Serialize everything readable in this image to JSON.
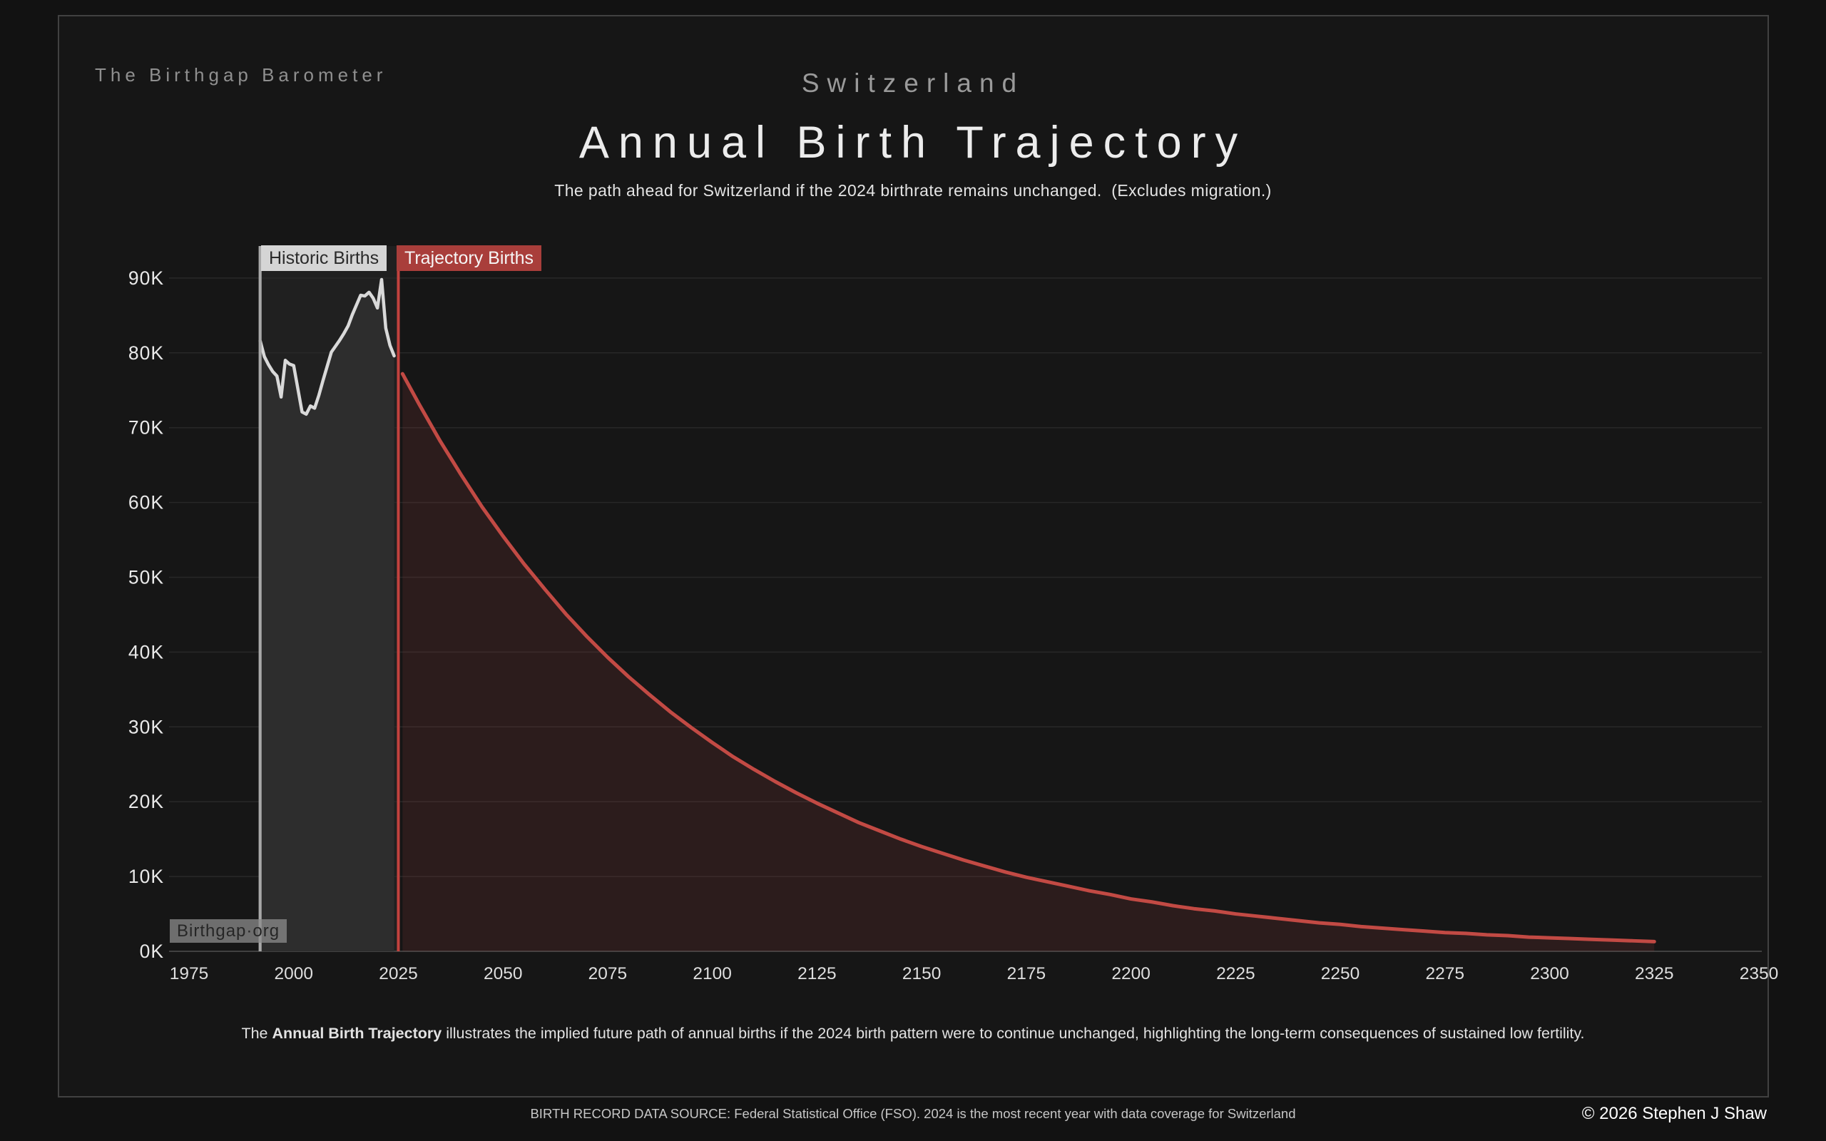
{
  "brand": "The Birthgap Barometer",
  "header": {
    "country": "Switzerland",
    "title": "Annual Birth Trajectory",
    "subtitle": "The path ahead for Switzerland if the 2024 birthrate remains unchanged.  (Excludes migration.)"
  },
  "legend": {
    "historic_label": "Historic Births",
    "trajectory_label": "Trajectory Births"
  },
  "watermark": "Birthgap·org",
  "footnote": {
    "lead": "The ",
    "bold": "Annual Birth Trajectory",
    "rest": " illustrates the implied future path of annual births if the 2024 birth pattern were to continue unchanged, highlighting the long-term consequences of sustained low fertility."
  },
  "footer": {
    "source": "BIRTH RECORD DATA SOURCE: Federal Statistical Office (FSO). 2024 is the most recent year with data coverage for Switzerland",
    "copyright": "© 2026 Stephen J Shaw"
  },
  "chart_data": {
    "type": "area",
    "title": "Annual Birth Trajectory",
    "xlabel": "",
    "ylabel": "",
    "x_axis": {
      "range": [
        1975,
        2350
      ],
      "ticks": [
        1975,
        2000,
        2025,
        2050,
        2075,
        2100,
        2125,
        2150,
        2175,
        2200,
        2225,
        2250,
        2275,
        2300,
        2325,
        2350
      ]
    },
    "y_axis": {
      "range_thousands": [
        0,
        94
      ],
      "tick_values_thousands": [
        0,
        10,
        20,
        30,
        40,
        50,
        60,
        70,
        80,
        90
      ],
      "tick_labels": [
        "0K",
        "10K",
        "20K",
        "30K",
        "40K",
        "50K",
        "60K",
        "70K",
        "80K",
        "90K"
      ]
    },
    "grid": "horizontal-only",
    "legend_position": "top-left-of-plot",
    "historic_start_year": 1992,
    "trajectory_boundary_year": 2025,
    "series": [
      {
        "name": "Historic Births",
        "unit": "thousand births per year",
        "years": [
          1992,
          1993,
          1994,
          1995,
          1996,
          1997,
          1998,
          1999,
          2000,
          2001,
          2002,
          2003,
          2004,
          2005,
          2006,
          2007,
          2008,
          2009,
          2010,
          2011,
          2012,
          2013,
          2014,
          2015,
          2016,
          2017,
          2018,
          2019,
          2020,
          2021,
          2022,
          2023,
          2024
        ],
        "values_thousands": [
          81.6,
          79.5,
          78.4,
          77.5,
          76.9,
          74.1,
          79.0,
          78.5,
          78.3,
          75.2,
          72.1,
          71.8,
          72.9,
          72.6,
          74.3,
          76.3,
          78.2,
          80.1,
          80.9,
          81.7,
          82.6,
          83.6,
          85.1,
          86.4,
          87.7,
          87.6,
          88.1,
          87.3,
          86.0,
          89.8,
          83.3,
          81.0,
          79.6
        ]
      },
      {
        "name": "Trajectory Births",
        "unit": "thousand births per year",
        "years": [
          2026,
          2030,
          2035,
          2040,
          2045,
          2050,
          2055,
          2060,
          2065,
          2070,
          2075,
          2080,
          2085,
          2090,
          2095,
          2100,
          2105,
          2110,
          2115,
          2120,
          2125,
          2130,
          2135,
          2140,
          2145,
          2150,
          2155,
          2160,
          2165,
          2170,
          2175,
          2180,
          2185,
          2190,
          2195,
          2200,
          2205,
          2210,
          2215,
          2220,
          2225,
          2230,
          2235,
          2240,
          2245,
          2250,
          2255,
          2260,
          2265,
          2270,
          2275,
          2280,
          2285,
          2290,
          2295,
          2300,
          2305,
          2310,
          2315,
          2320,
          2325
        ],
        "values_thousands": [
          77.2,
          73.1,
          68.2,
          63.7,
          59.4,
          55.5,
          51.8,
          48.4,
          45.1,
          42.1,
          39.3,
          36.7,
          34.3,
          32.0,
          29.9,
          27.9,
          26.0,
          24.3,
          22.7,
          21.2,
          19.8,
          18.5,
          17.2,
          16.1,
          15.0,
          14.0,
          13.1,
          12.2,
          11.4,
          10.6,
          9.9,
          9.3,
          8.7,
          8.1,
          7.6,
          7.0,
          6.6,
          6.1,
          5.7,
          5.4,
          5.0,
          4.7,
          4.4,
          4.1,
          3.8,
          3.6,
          3.3,
          3.1,
          2.9,
          2.7,
          2.5,
          2.4,
          2.2,
          2.1,
          1.9,
          1.8,
          1.7,
          1.6,
          1.5,
          1.4,
          1.3
        ]
      }
    ],
    "colors": {
      "grid": "#282828",
      "baseline": "#414141",
      "historic_line": "#d9d9d9",
      "historic_fill": "#2d2d2d",
      "historic_band": "rgba(255,255,255,0.045)",
      "historic_boundary_line": "#a8a8a8",
      "trajectory_line": "#c24a44",
      "trajectory_fill": "rgba(194,73,66,0.13)",
      "trajectory_boundary_line": "#c2423e",
      "y_tick_text": "#e9e9e9",
      "x_tick_text": "#dedede"
    }
  }
}
